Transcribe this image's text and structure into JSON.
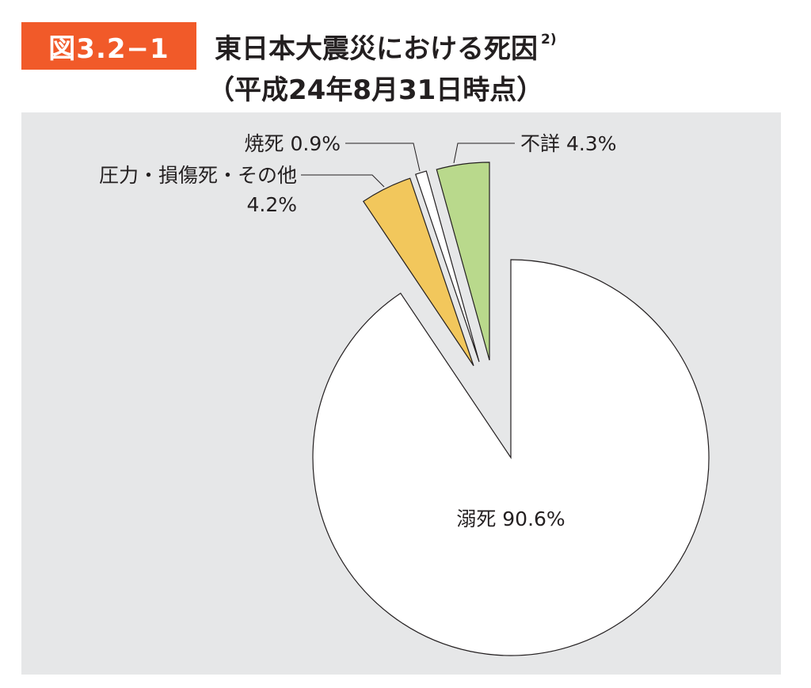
{
  "figure_label": "図3.2−1",
  "title": "東日本大震災における死因",
  "title_note": "2)",
  "subtitle": "（平成24年8月31日時点）",
  "colors": {
    "badge": "#f15a29",
    "panel": "#e6e7e8",
    "drowning": "#ffffff",
    "crush": "#f2c75c",
    "burn": "#ffffff",
    "unknown": "#b9d98c"
  },
  "chart_data": {
    "type": "pie",
    "title": "東日本大震災における死因",
    "exploded": true,
    "slices": [
      {
        "name": "溺死",
        "value": 90.6,
        "label": "溺死 90.6%",
        "color": "#ffffff"
      },
      {
        "name": "圧力・損傷死・その他",
        "value": 4.2,
        "label_line1": "圧力・損傷死・その他",
        "label_line2": "4.2%",
        "color": "#f2c75c"
      },
      {
        "name": "焼死",
        "value": 0.9,
        "label": "焼死 0.9%",
        "color": "#ffffff"
      },
      {
        "name": "不詳",
        "value": 4.3,
        "label": "不詳 4.3%",
        "color": "#b9d98c"
      }
    ]
  }
}
